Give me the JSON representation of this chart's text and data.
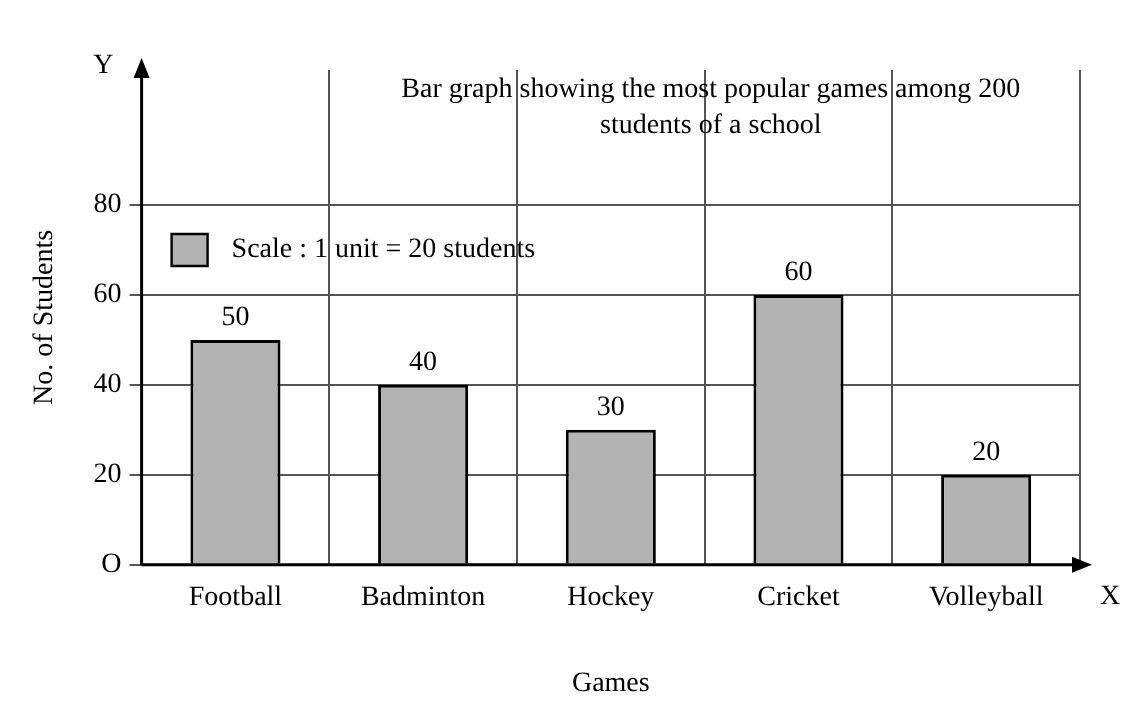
{
  "chart_data": {
    "type": "bar",
    "title": "Bar graph showing the most popular games among 200 students of a school",
    "xlabel": "Games",
    "ylabel": "No. of Students",
    "categories": [
      "Football",
      "Badminton",
      "Hockey",
      "Cricket",
      "Volleyball"
    ],
    "series": [
      {
        "name": "Scale : 1 unit = 20 students",
        "color": "#b3b3b3",
        "values": [
          50,
          40,
          30,
          60,
          20
        ]
      }
    ],
    "ylim": [
      0,
      110
    ],
    "yticks": [
      {
        "value": 0,
        "label": "O"
      },
      20,
      40,
      60,
      80
    ],
    "annotations": [
      "Y",
      "X"
    ],
    "data_labels": true,
    "grid": true,
    "legend": "top left"
  }
}
